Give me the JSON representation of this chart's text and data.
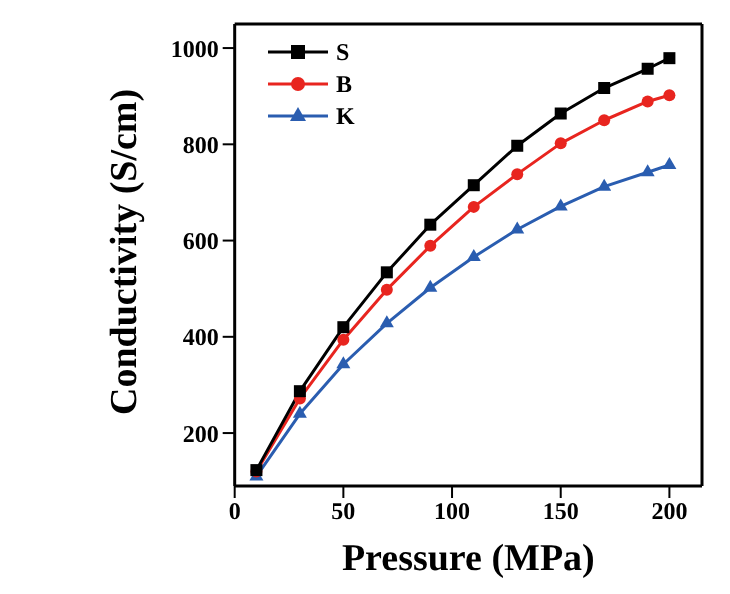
{
  "chart_data": {
    "type": "line",
    "xlabel": "Pressure (MPa)",
    "ylabel": "Conductivity (S/cm)",
    "x": [
      10,
      30,
      50,
      70,
      90,
      110,
      130,
      150,
      170,
      190,
      200
    ],
    "series": [
      {
        "name": "S",
        "color": "#000000",
        "marker": "square",
        "values": [
          123,
          287,
          420,
          534,
          633,
          715,
          797,
          864,
          917,
          957,
          979
        ]
      },
      {
        "name": "B",
        "color": "#e8251f",
        "marker": "circle",
        "values": [
          120,
          272,
          394,
          498,
          589,
          670,
          738,
          802,
          850,
          889,
          902
        ]
      },
      {
        "name": "K",
        "color": "#2a5db0",
        "marker": "triangle",
        "values": [
          110,
          240,
          343,
          428,
          502,
          566,
          623,
          671,
          712,
          742,
          757
        ]
      }
    ],
    "xlim": [
      0,
      215
    ],
    "ylim": [
      90,
      1050
    ],
    "xticks": [
      0,
      50,
      100,
      150,
      200
    ],
    "yticks": [
      200,
      400,
      600,
      800,
      1000
    ],
    "grid": false,
    "legend": "top left",
    "line_style": "solid"
  }
}
